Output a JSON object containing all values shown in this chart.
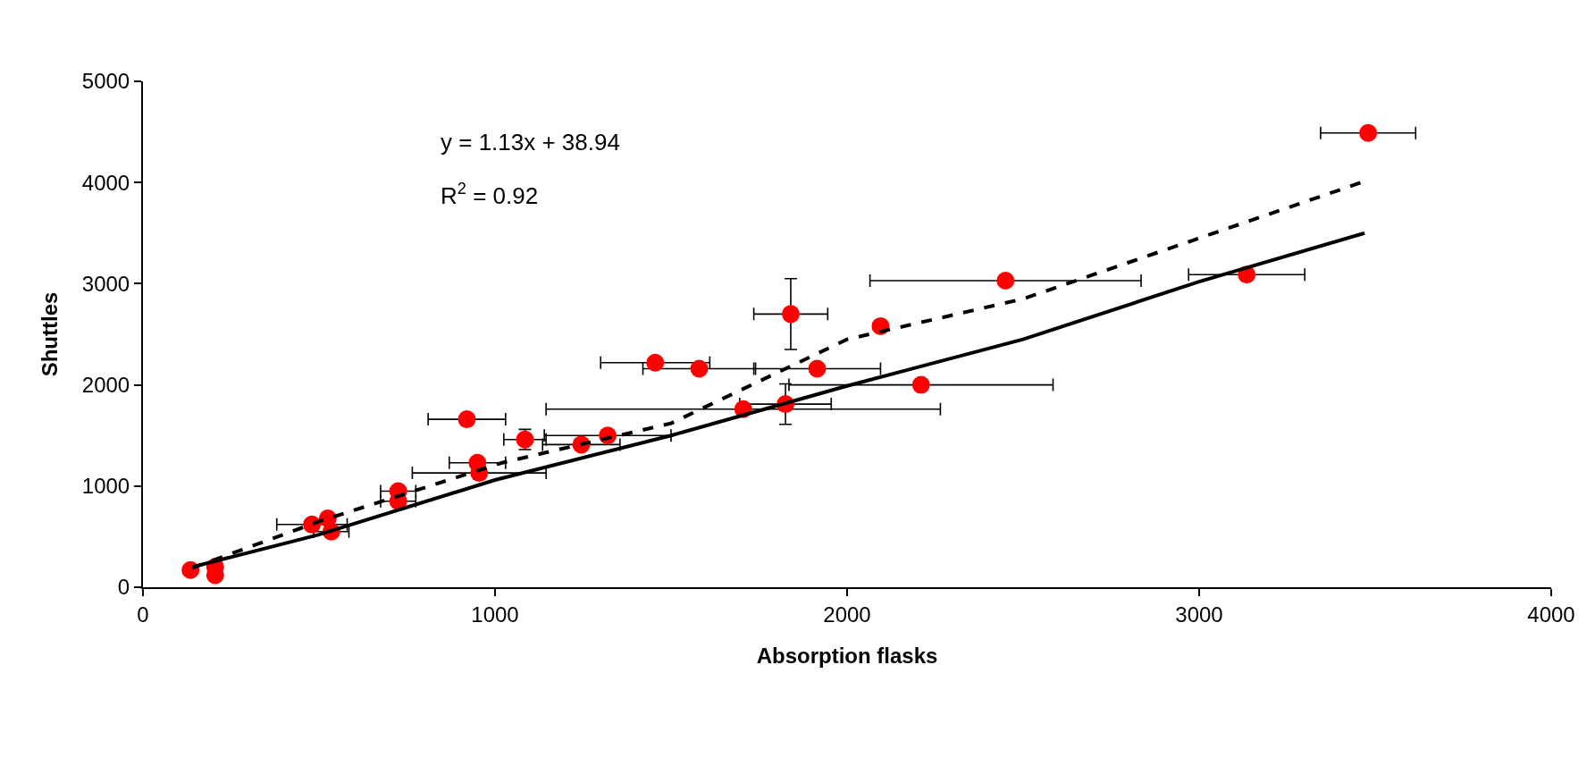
{
  "chart_data": {
    "type": "scatter",
    "xlabel": "Absorption flasks",
    "ylabel": "Shuttles",
    "annotations": [
      "y = 1.13x + 38.94",
      "R$^{2}$ = 0.92"
    ],
    "xlim": [
      0,
      4000
    ],
    "xticks": [
      0,
      1000,
      2000,
      3000,
      4000
    ],
    "ylim": [
      0,
      5000
    ],
    "yticks": [
      0,
      1000,
      2000,
      3000,
      4000,
      5000
    ],
    "marker": "circle",
    "series": [
      {
        "color": "#ff0000",
        "x": [
          135,
          205,
          205,
          480,
          525,
          535,
          725,
          725,
          920,
          950,
          955,
          1085,
          1245,
          1320,
          1455,
          1580,
          1705,
          1825,
          1840,
          1915,
          2095,
          2210,
          2450,
          3135,
          3480
        ],
        "values": [
          170,
          200,
          120,
          620,
          680,
          550,
          950,
          850,
          1660,
          1230,
          1130,
          1460,
          1410,
          1500,
          2220,
          2160,
          1760,
          1810,
          2700,
          2160,
          2580,
          2000,
          3030,
          3090,
          4490
        ],
        "xerrors": [
          null,
          null,
          null,
          100,
          null,
          50,
          50,
          50,
          110,
          80,
          190,
          60,
          110,
          180,
          155,
          160,
          560,
          130,
          105,
          180,
          null,
          375,
          385,
          165,
          135
        ],
        "errors": [
          null,
          null,
          null,
          null,
          null,
          null,
          null,
          null,
          null,
          null,
          null,
          100,
          null,
          null,
          null,
          null,
          null,
          200,
          350,
          null,
          null,
          null,
          null,
          null,
          null
        ]
      },
      {
        "type": "line",
        "line_style": "solid",
        "marker": "none",
        "color": "#000000",
        "x": [
          140,
          500,
          1000,
          1500,
          2000,
          2500,
          3000,
          3470
        ],
        "values": [
          200,
          520,
          1060,
          1500,
          1990,
          2450,
          3020,
          3500
        ]
      },
      {
        "type": "line",
        "line_style": "dashed",
        "marker": "none",
        "color": "#000000",
        "x": [
          140,
          500,
          1020,
          1500,
          2000,
          2500,
          3000,
          3460
        ],
        "values": [
          190,
          650,
          1230,
          1620,
          2450,
          2850,
          3450,
          4000
        ]
      }
    ]
  }
}
